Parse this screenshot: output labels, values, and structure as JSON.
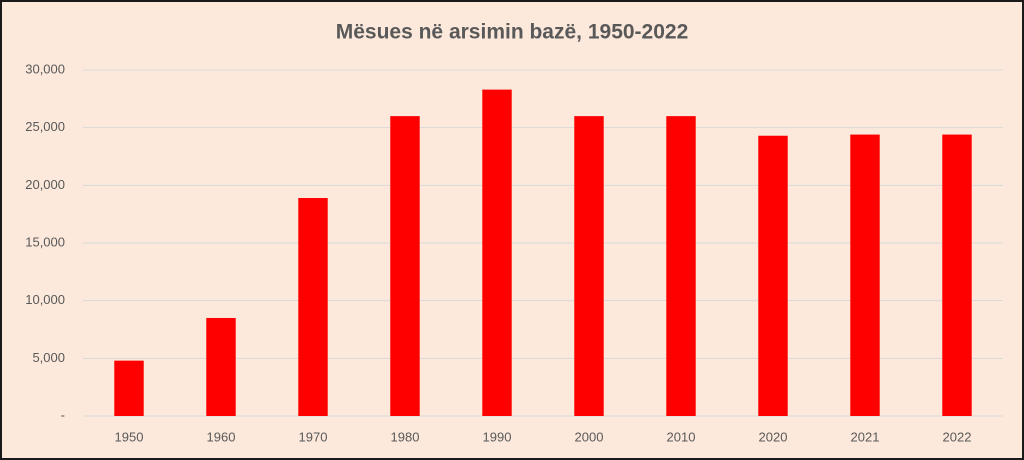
{
  "chart_data": {
    "type": "bar",
    "title": "Mësues në arsimin bazë, 1950-2022",
    "categories": [
      "1950",
      "1960",
      "1970",
      "1980",
      "1990",
      "2000",
      "2010",
      "2020",
      "2021",
      "2022"
    ],
    "values": [
      4800,
      8500,
      18900,
      26000,
      28300,
      26000,
      26000,
      24300,
      24400,
      24400
    ],
    "color": "#ff0000",
    "ylim": [
      0,
      30000
    ],
    "yticks": [
      {
        "value": 0,
        "label": "-"
      },
      {
        "value": 5000,
        "label": "5,000"
      },
      {
        "value": 10000,
        "label": "10,000"
      },
      {
        "value": 15000,
        "label": "15,000"
      },
      {
        "value": 20000,
        "label": "20,000"
      },
      {
        "value": 25000,
        "label": "25,000"
      },
      {
        "value": 30000,
        "label": "30,000"
      }
    ],
    "grid": true
  }
}
